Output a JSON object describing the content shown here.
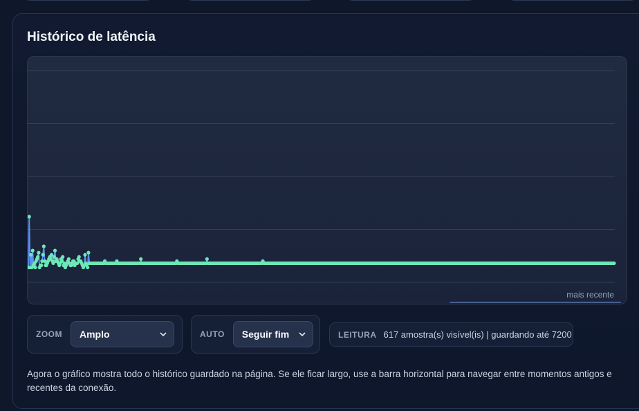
{
  "panel": {
    "title": "Histórico de latência"
  },
  "chart_data": {
    "type": "line",
    "title": "Histórico de latência",
    "xlabel": "",
    "ylabel": "",
    "x_end_label": "mais recente",
    "grid": true,
    "grid_lines": 5,
    "y_max": 100,
    "line_color": "#5b8ff0",
    "point_color": "#6ee7b7",
    "series": [
      {
        "values": [
          7,
          31,
          7,
          13,
          7,
          15,
          8,
          9,
          7,
          10,
          11,
          12,
          14,
          7,
          8,
          8,
          10,
          13,
          17,
          10,
          8,
          8,
          9,
          10,
          11,
          12,
          11,
          13,
          10,
          9,
          12,
          15,
          10,
          11,
          10,
          9,
          8,
          9,
          11,
          10,
          12,
          8,
          9,
          7,
          8,
          9,
          10,
          11,
          9,
          8,
          8,
          9,
          10,
          10,
          8,
          9,
          9,
          9,
          11,
          12,
          10,
          10,
          9,
          8,
          7,
          8,
          13,
          9,
          8,
          7,
          14,
          9,
          9,
          9,
          9,
          9,
          9,
          9,
          9,
          9,
          9,
          9,
          9,
          9,
          9,
          9,
          9,
          9,
          9,
          10,
          9,
          9,
          9,
          9,
          9,
          9,
          9,
          9,
          9,
          9,
          9,
          9,
          9,
          10,
          9,
          9,
          9,
          9,
          9,
          9,
          9,
          9,
          9,
          9,
          9,
          9,
          9,
          9,
          9,
          9,
          9,
          9,
          9,
          9,
          9,
          9,
          9,
          9,
          9,
          9,
          9,
          11,
          9,
          9,
          9,
          9,
          9,
          9,
          9,
          9,
          9,
          9,
          9,
          9,
          9,
          9,
          9,
          9,
          9,
          9,
          9,
          9,
          9,
          9,
          9,
          9,
          9,
          9,
          9,
          9,
          9,
          9,
          9,
          9,
          9,
          9,
          9,
          9,
          9,
          9,
          9,
          9,
          9,
          10,
          9,
          9,
          9,
          9,
          9,
          9,
          9,
          9,
          9,
          9,
          9,
          9,
          9,
          9,
          9,
          9,
          9,
          9,
          9,
          9,
          9,
          9,
          9,
          9,
          9,
          9,
          9,
          9,
          9,
          9,
          9,
          9,
          9,
          9,
          11,
          9,
          9,
          9,
          9,
          9,
          9,
          9,
          9,
          9,
          9,
          9,
          9,
          9,
          9,
          9,
          9,
          9,
          9,
          9,
          9,
          9,
          9,
          9,
          9,
          9,
          9,
          9,
          9,
          9,
          9,
          9,
          9,
          9,
          9,
          9,
          9,
          9,
          9,
          9,
          9,
          9,
          9,
          9,
          9,
          9,
          9,
          9,
          9,
          9,
          9,
          9,
          9,
          9,
          9,
          9,
          9,
          9,
          9,
          9,
          9,
          9,
          9,
          9,
          9,
          10,
          9,
          9,
          9,
          9,
          9,
          9,
          9,
          9,
          9,
          9,
          9,
          9,
          9,
          9,
          9,
          9,
          9,
          9,
          9,
          9,
          9,
          9,
          9,
          9,
          9,
          9,
          9,
          9,
          9,
          9,
          9,
          9,
          9,
          9,
          9,
          9,
          9,
          9,
          9,
          9,
          9,
          9,
          9,
          9,
          9,
          9,
          9,
          9,
          9,
          9,
          9,
          9,
          9,
          9,
          9,
          9,
          9,
          9,
          9,
          9,
          9,
          9,
          9,
          9,
          9,
          9,
          9,
          9,
          9,
          9,
          9,
          9,
          9,
          9,
          9,
          9,
          9,
          9,
          9,
          9,
          9,
          9,
          9,
          9,
          9,
          9,
          9,
          9,
          9,
          9,
          9,
          9,
          9,
          9,
          9,
          9,
          9,
          9,
          9,
          9,
          9,
          9,
          9,
          9,
          9,
          9,
          9,
          9,
          9,
          9,
          9,
          9,
          9,
          9,
          9,
          9,
          9,
          9,
          9,
          9,
          9,
          9,
          9,
          9,
          9,
          9,
          9,
          9,
          9,
          9,
          9,
          9,
          9,
          9,
          9,
          9,
          9,
          9,
          9,
          9,
          9,
          9,
          9,
          9,
          9,
          9,
          9,
          9,
          9,
          9,
          9,
          9,
          9,
          9,
          9,
          9,
          9,
          9,
          9,
          9,
          9,
          9,
          9,
          9,
          9,
          9,
          9,
          9,
          9,
          9,
          9,
          9,
          9,
          9,
          9,
          9,
          9,
          9,
          9,
          9,
          9,
          9,
          9,
          9,
          9,
          9,
          9,
          9,
          9,
          9,
          9,
          9,
          9,
          9,
          9,
          9,
          9,
          9,
          9,
          9,
          9,
          9,
          9,
          9,
          9,
          9,
          9,
          9,
          9,
          9,
          9,
          9,
          9,
          9,
          9,
          9,
          9,
          9,
          9,
          9,
          9,
          9,
          9,
          9,
          9,
          9,
          9,
          9,
          9,
          9,
          9,
          9,
          9,
          9,
          9,
          9,
          9,
          9,
          9,
          9,
          9,
          9,
          9,
          9,
          9,
          9,
          9,
          9,
          9,
          9,
          9,
          9,
          9,
          9,
          9,
          9,
          9,
          9,
          9,
          9,
          9,
          9,
          9,
          9,
          9,
          9,
          9,
          9,
          9,
          9,
          9,
          9,
          9,
          9,
          9,
          9,
          9,
          9,
          9,
          9,
          9,
          9,
          9,
          9,
          9,
          9,
          9,
          9,
          9,
          9,
          9,
          9,
          9,
          9,
          9,
          9,
          9,
          9,
          9,
          9,
          9,
          9,
          9,
          9,
          9,
          9,
          9,
          9,
          9,
          9,
          9,
          9,
          9,
          9,
          9,
          9,
          9,
          9,
          9,
          9,
          9,
          9,
          9,
          9,
          9,
          9,
          9,
          9,
          9,
          9,
          9,
          9,
          9,
          9,
          9,
          9,
          9,
          9,
          9,
          9,
          9,
          9,
          9,
          9,
          9,
          9,
          9,
          9,
          9,
          9,
          9,
          9,
          9,
          9,
          9,
          9,
          9,
          9,
          9,
          9,
          9,
          9,
          9,
          9,
          9,
          9,
          9,
          9,
          9,
          9,
          9,
          9,
          9,
          9,
          9,
          9,
          9,
          9,
          9,
          9,
          9,
          9,
          9,
          9,
          9,
          9,
          9,
          9,
          9,
          9,
          9,
          9,
          9,
          9,
          9,
          9,
          9,
          9,
          9,
          9,
          9,
          9,
          9,
          9,
          9,
          9,
          9,
          9,
          9
        ]
      }
    ]
  },
  "controls": {
    "zoom": {
      "label": "ZOOM",
      "value": "Amplo",
      "icon": "chevron-down-icon"
    },
    "auto": {
      "label": "AUTO",
      "value": "Seguir fim",
      "icon": "chevron-down-icon"
    },
    "reading": {
      "label": "LEITURA",
      "text": "617 amostra(s) visível(is) | guardando até 7200"
    }
  },
  "note": "Agora o gráfico mostra todo o histórico guardado na página. Se ele ficar largo, use a barra horizontal para navegar entre momentos antigos e recentes da conexão."
}
